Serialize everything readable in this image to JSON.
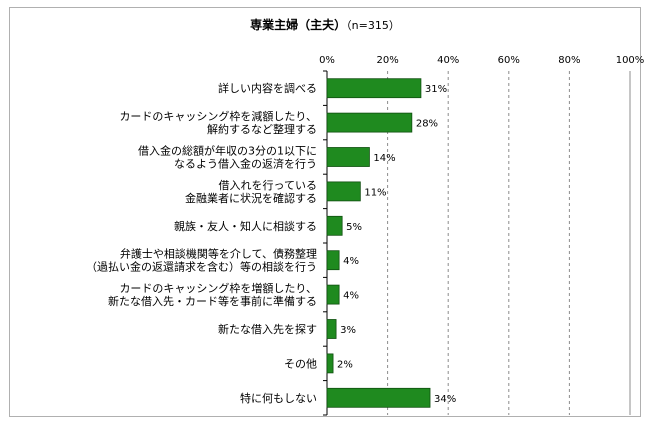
{
  "chart_data": {
    "type": "bar",
    "orientation": "horizontal",
    "title": "専業主婦（主夫）",
    "subtitle": "（n=315）",
    "categories": [
      [
        "詳しい内容を調べる"
      ],
      [
        "カードのキャッシング枠を減額したり、",
        "解約するなど整理する"
      ],
      [
        "借入金の総額が年収の3分の1以下に",
        "なるよう借入金の返済を行う"
      ],
      [
        "借入れを行っている",
        "金融業者に状況を確認する"
      ],
      [
        "親族・友人・知人に相談する"
      ],
      [
        "弁護士や相談機関等を介して、債務整理",
        "（過払い金の返還請求を含む）等の相談を行う"
      ],
      [
        "カードのキャッシング枠を増額したり、",
        "新たな借入先・カード等を事前に準備する"
      ],
      [
        "新たな借入先を探す"
      ],
      [
        "その他"
      ],
      [
        "特に何もしない"
      ]
    ],
    "values": [
      31,
      28,
      14,
      11,
      5,
      4,
      4,
      3,
      2,
      34
    ],
    "value_labels": [
      "31%",
      "28%",
      "14%",
      "11%",
      "5%",
      "4%",
      "4%",
      "3%",
      "2%",
      "34%"
    ],
    "xlim": [
      0,
      100
    ],
    "x_ticks": [
      "0%",
      "20%",
      "40%",
      "60%",
      "80%",
      "100%"
    ],
    "grid": true,
    "bar_color": "#1f8a1f"
  }
}
